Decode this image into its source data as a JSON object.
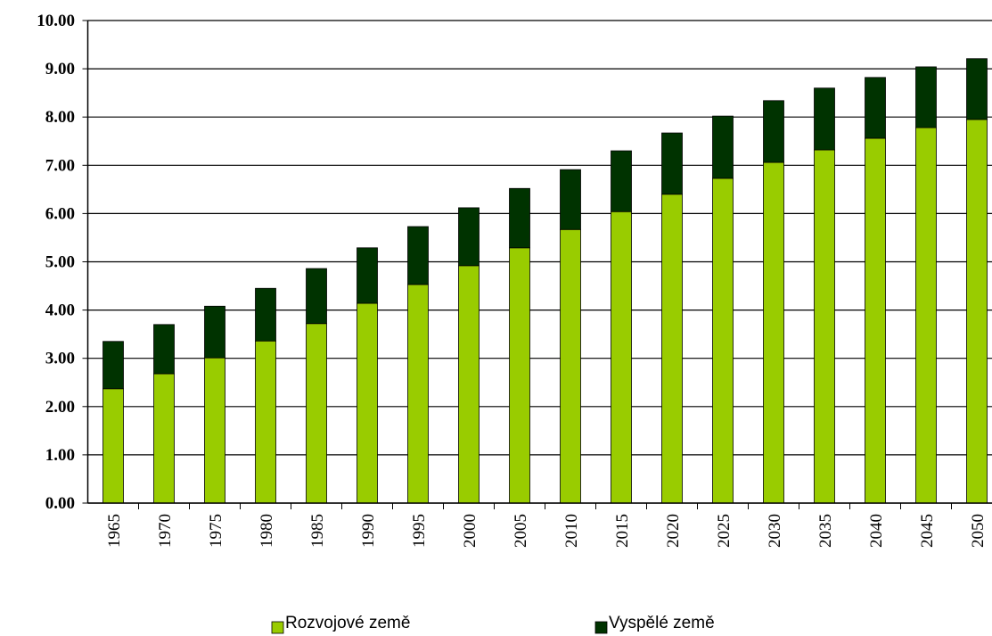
{
  "chart_data": {
    "type": "stacked_bar",
    "categories": [
      "1965",
      "1970",
      "1975",
      "1980",
      "1985",
      "1990",
      "1995",
      "2000",
      "2005",
      "2010",
      "2015",
      "2020",
      "2025",
      "2030",
      "2035",
      "2040",
      "2045",
      "2050"
    ],
    "series": [
      {
        "name": "Rozvojové země",
        "color": "#99cc00",
        "values": [
          2.37,
          2.68,
          3.01,
          3.36,
          3.72,
          4.14,
          4.53,
          4.92,
          5.29,
          5.67,
          6.04,
          6.4,
          6.73,
          7.06,
          7.32,
          7.56,
          7.78,
          7.95
        ]
      },
      {
        "name": "Vyspělé země",
        "color": "#003300",
        "values": [
          0.98,
          1.02,
          1.07,
          1.09,
          1.14,
          1.15,
          1.2,
          1.2,
          1.23,
          1.24,
          1.26,
          1.27,
          1.29,
          1.28,
          1.28,
          1.26,
          1.26,
          1.26
        ]
      }
    ],
    "ylim": [
      0,
      10
    ],
    "yticks": [
      {
        "value": 0,
        "label": "0.00"
      },
      {
        "value": 1,
        "label": "1.00"
      },
      {
        "value": 2,
        "label": "2.00"
      },
      {
        "value": 3,
        "label": "3.00"
      },
      {
        "value": 4,
        "label": "4.00"
      },
      {
        "value": 5,
        "label": "5.00"
      },
      {
        "value": 6,
        "label": "6.00"
      },
      {
        "value": 7,
        "label": "7.00"
      },
      {
        "value": 8,
        "label": "8.00"
      },
      {
        "value": 9,
        "label": "9.00"
      },
      {
        "value": 10,
        "label": "10.00"
      }
    ],
    "grid": true,
    "legend": "bottom"
  }
}
